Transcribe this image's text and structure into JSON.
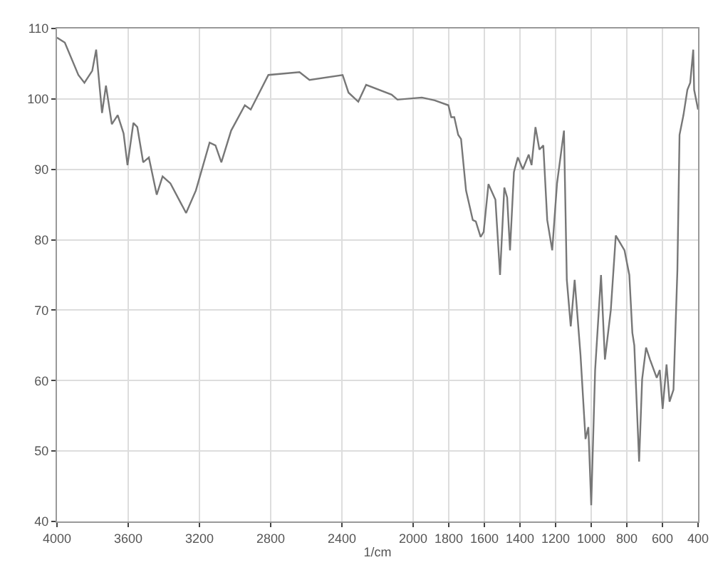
{
  "chart_data": {
    "type": "line",
    "xlabel": "1/cm",
    "xlim": [
      4000,
      400
    ],
    "xticks": [
      4000,
      3600,
      3200,
      2800,
      2400,
      2000,
      1800,
      1600,
      1400,
      1200,
      1000,
      800,
      600,
      400
    ],
    "ylim": [
      40,
      110
    ],
    "yticks": [
      40,
      50,
      60,
      70,
      80,
      90,
      100,
      110
    ],
    "grid": true,
    "marker": "none",
    "line_style": "solid",
    "x": [
      4000,
      3956,
      3880,
      3846,
      3802,
      3780,
      3747,
      3725,
      3692,
      3659,
      3626,
      3604,
      3571,
      3549,
      3516,
      3484,
      3440,
      3407,
      3363,
      3275,
      3220,
      3143,
      3110,
      3077,
      3022,
      2945,
      2912,
      2813,
      2638,
      2582,
      2396,
      2363,
      2308,
      2264,
      2121,
      2088,
      1951,
      1879,
      1802,
      1786,
      1769,
      1747,
      1731,
      1703,
      1665,
      1648,
      1621,
      1604,
      1577,
      1538,
      1512,
      1488,
      1472,
      1456,
      1434,
      1412,
      1384,
      1351,
      1335,
      1313,
      1291,
      1269,
      1247,
      1219,
      1192,
      1153,
      1137,
      1115,
      1093,
      1060,
      1032,
      1016,
      1000,
      978,
      945,
      923,
      890,
      862,
      813,
      786,
      769,
      758,
      731,
      714,
      692,
      670,
      632,
      615,
      599,
      577,
      560,
      538,
      516,
      504,
      482,
      460,
      444,
      427,
      422,
      400
    ],
    "series": [
      {
        "color": "#777777",
        "values": [
          108.7,
          108,
          103.4,
          102.3,
          104,
          107,
          98,
          101.9,
          96.4,
          97.7,
          95.1,
          90.6,
          96.6,
          96,
          91,
          91.7,
          86.4,
          89,
          88,
          83.8,
          87,
          93.8,
          93.4,
          91,
          95.5,
          99.1,
          98.5,
          103.4,
          103.8,
          102.7,
          103.4,
          100.9,
          99.6,
          102,
          100.6,
          99.9,
          100.2,
          99.8,
          99.1,
          97.4,
          97.4,
          94.9,
          94.3,
          87,
          82.8,
          82.6,
          80.4,
          81.1,
          87.9,
          85.7,
          75,
          87.4,
          86,
          78.5,
          89.6,
          91.7,
          90,
          92.1,
          90.6,
          96,
          92.8,
          93.4,
          82.8,
          78.5,
          88,
          95.5,
          74.3,
          67.7,
          74.3,
          63.6,
          51.7,
          53.4,
          42.3,
          61.5,
          75,
          63,
          70,
          80.6,
          78.5,
          75,
          66.8,
          65,
          48.5,
          60.2,
          64.7,
          63,
          60.4,
          61.5,
          56,
          62.3,
          57,
          58.7,
          75.7,
          94.9,
          97.7,
          101.3,
          102.3,
          107,
          101.3,
          98.5
        ]
      }
    ]
  }
}
